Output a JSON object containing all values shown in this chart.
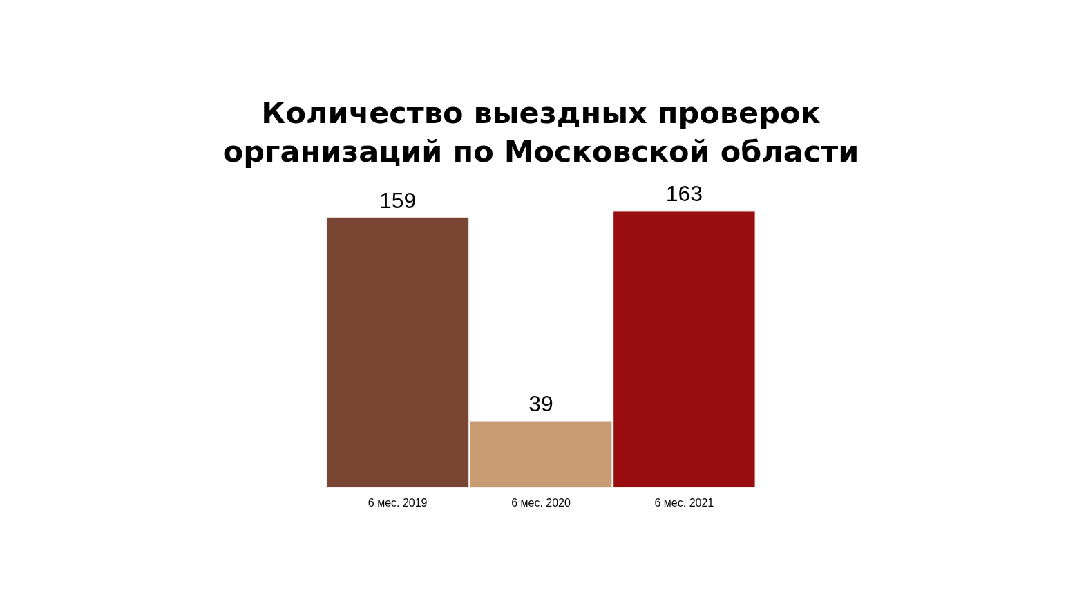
{
  "chart_data": {
    "type": "bar",
    "title": "Количество выездных проверок\nорганизаций по Московской области",
    "categories": [
      "6 мес. 2019",
      "6 мес. 2020",
      "6 мес. 2021"
    ],
    "values": [
      159,
      39,
      163
    ],
    "colors": [
      "#7a4533",
      "#c99b73",
      "#990d11"
    ],
    "data_labels": true
  }
}
